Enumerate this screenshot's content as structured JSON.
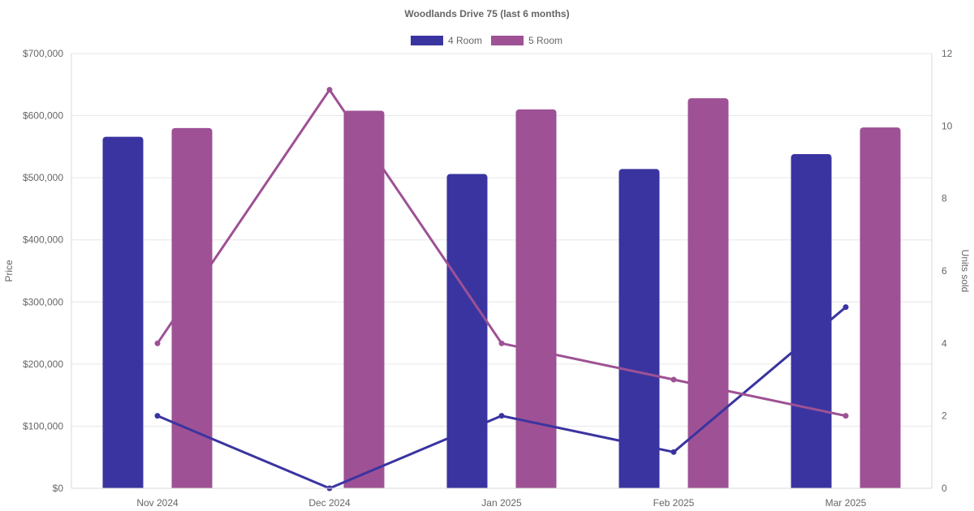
{
  "chart_data": {
    "type": "bar",
    "title": "Woodlands Drive 75 (last 6 months)",
    "categories": [
      "Nov 2024",
      "Dec 2024",
      "Jan 2025",
      "Feb 2025",
      "Mar 2025"
    ],
    "series": [
      {
        "name": "4 Room",
        "color": "#3a34a0",
        "price_values": [
          566000,
          null,
          506000,
          514000,
          538000
        ],
        "units_sold": [
          2,
          0,
          2,
          1,
          5
        ]
      },
      {
        "name": "5 Room",
        "color": "#9e5194",
        "price_values": [
          580000,
          608000,
          610000,
          628000,
          581000
        ],
        "units_sold": [
          4,
          11,
          4,
          3,
          2
        ]
      }
    ],
    "left_axis": {
      "label": "Price",
      "range": [
        0,
        700000
      ],
      "ticks": [
        "$0",
        "$100,000",
        "$200,000",
        "$300,000",
        "$400,000",
        "$500,000",
        "$600,000",
        "$700,000"
      ]
    },
    "right_axis": {
      "label": "Units sold",
      "range": [
        0,
        12
      ],
      "ticks": [
        "0",
        "2",
        "4",
        "6",
        "8",
        "10",
        "12"
      ]
    },
    "legend_position": "top-center",
    "grid": true
  }
}
